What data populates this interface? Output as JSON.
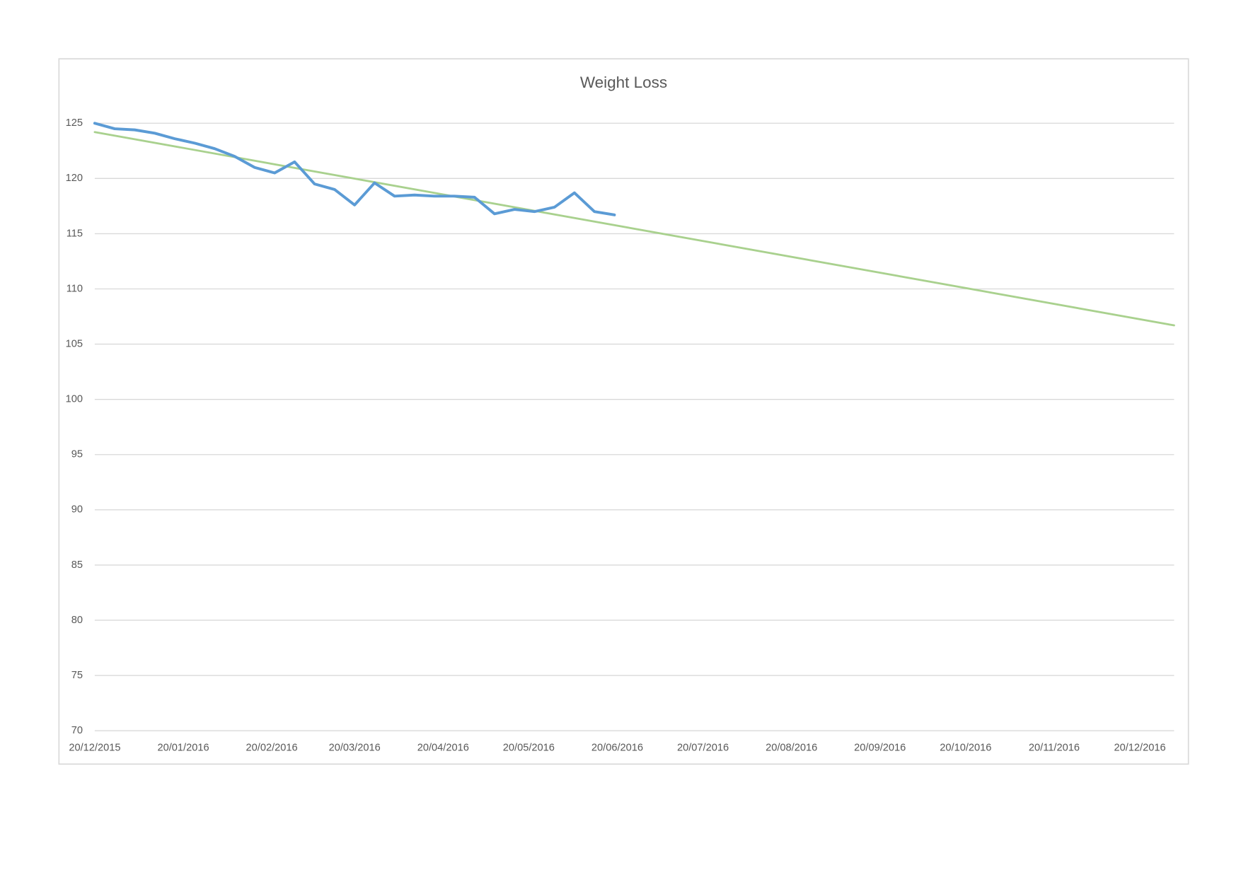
{
  "chart_data": {
    "type": "line",
    "title": "Weight Loss",
    "xlim": [
      "20/12/2015",
      "01/01/2017"
    ],
    "xticks": [
      "20/12/2015",
      "20/01/2016",
      "20/02/2016",
      "20/03/2016",
      "20/04/2016",
      "20/05/2016",
      "20/06/2016",
      "20/07/2016",
      "20/08/2016",
      "20/09/2016",
      "20/10/2016",
      "20/11/2016",
      "20/12/2016"
    ],
    "ylim": [
      70,
      125
    ],
    "yticks": [
      70,
      75,
      80,
      85,
      90,
      95,
      100,
      105,
      110,
      115,
      120,
      125
    ],
    "grid": true,
    "series": [
      {
        "color": "#5b9bd5",
        "x": [
          "20/12/2015",
          "27/12/2015",
          "03/01/2016",
          "10/01/2016",
          "17/01/2016",
          "24/01/2016",
          "31/01/2016",
          "07/02/2016",
          "14/02/2016",
          "21/02/2016",
          "28/02/2016",
          "06/03/2016",
          "13/03/2016",
          "20/03/2016",
          "27/03/2016",
          "03/04/2016",
          "10/04/2016",
          "17/04/2016",
          "24/04/2016",
          "01/05/2016",
          "08/05/2016",
          "15/05/2016",
          "22/05/2016",
          "29/05/2016",
          "05/06/2016",
          "12/06/2016",
          "19/06/2016"
        ],
        "values": [
          125.0,
          124.5,
          124.4,
          124.1,
          123.6,
          123.2,
          122.7,
          122.0,
          121.0,
          120.5,
          121.5,
          119.5,
          119.0,
          117.6,
          119.6,
          118.4,
          118.5,
          118.4,
          118.4,
          118.3,
          116.8,
          117.2,
          117.0,
          117.4,
          118.7,
          117.0,
          116.7
        ]
      },
      {
        "color": "#a9d18e",
        "x": [
          "20/12/2015",
          "01/01/2017"
        ],
        "values": [
          124.2,
          106.7
        ]
      }
    ]
  }
}
